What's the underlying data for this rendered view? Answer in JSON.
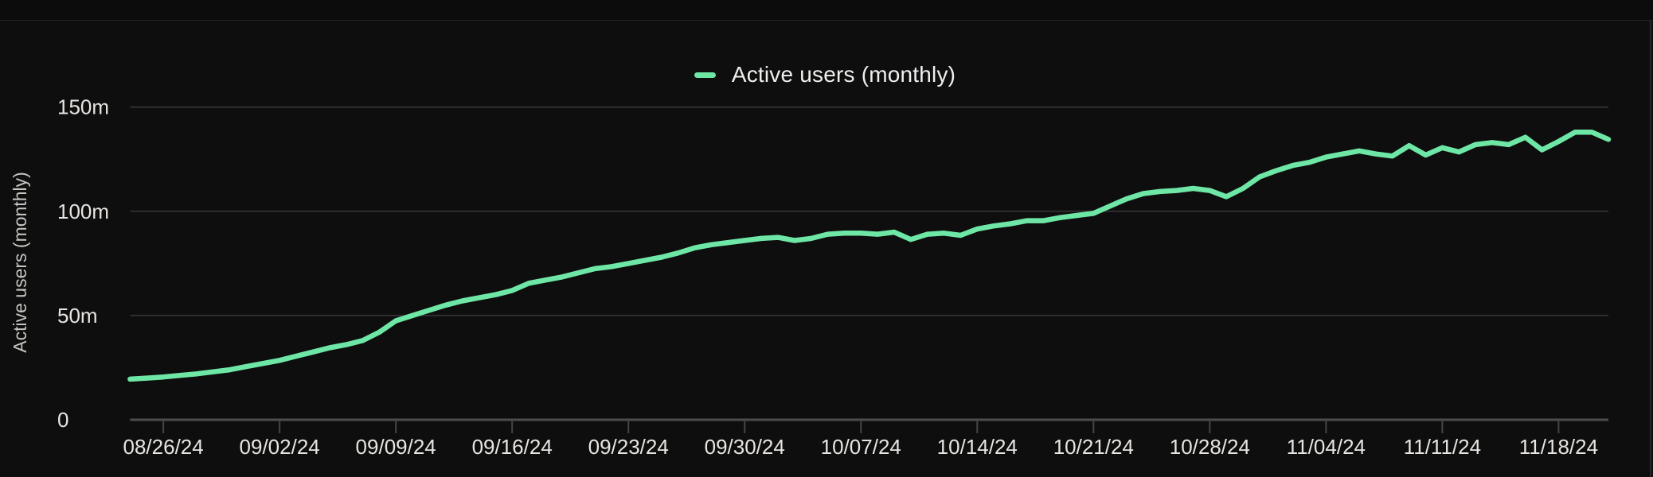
{
  "page": {
    "background": "#0e0e0e",
    "top_bar_background": "#0c0c0c",
    "divider_color": "#232323"
  },
  "chart_data": {
    "type": "line",
    "title": "",
    "legend": "Active users (monthly)",
    "ylabel": "Active users (monthly)",
    "xlabel": "",
    "ylim": [
      0,
      150
    ],
    "unit": "m (millions)",
    "grid": "horizontal",
    "legend_position": "top-center",
    "line_color": "#6ee7a6",
    "grid_color": "#2f2f2f",
    "axis_color": "#4d4d4d",
    "tick_mark_color": "#454545",
    "tick_text_color": "#e8e5e1",
    "axis_title_color": "#c9c6c2",
    "y_ticks": [
      {
        "value": 0,
        "label": "0"
      },
      {
        "value": 50,
        "label": "50m"
      },
      {
        "value": 100,
        "label": "100m"
      },
      {
        "value": 150,
        "label": "150m"
      }
    ],
    "x_tick_labels": [
      "08/26/24",
      "09/02/24",
      "09/09/24",
      "09/16/24",
      "09/23/24",
      "09/30/24",
      "10/07/24",
      "10/14/24",
      "10/21/24",
      "10/28/24",
      "11/04/24",
      "11/11/24",
      "11/18/24"
    ],
    "x": [
      "08/24/24",
      "08/25/24",
      "08/26/24",
      "08/27/24",
      "08/28/24",
      "08/29/24",
      "08/30/24",
      "08/31/24",
      "09/01/24",
      "09/02/24",
      "09/03/24",
      "09/04/24",
      "09/05/24",
      "09/06/24",
      "09/07/24",
      "09/08/24",
      "09/09/24",
      "09/10/24",
      "09/11/24",
      "09/12/24",
      "09/13/24",
      "09/14/24",
      "09/15/24",
      "09/16/24",
      "09/17/24",
      "09/18/24",
      "09/19/24",
      "09/20/24",
      "09/21/24",
      "09/22/24",
      "09/23/24",
      "09/24/24",
      "09/25/24",
      "09/26/24",
      "09/27/24",
      "09/28/24",
      "09/29/24",
      "09/30/24",
      "10/01/24",
      "10/02/24",
      "10/03/24",
      "10/04/24",
      "10/05/24",
      "10/06/24",
      "10/07/24",
      "10/08/24",
      "10/09/24",
      "10/10/24",
      "10/11/24",
      "10/12/24",
      "10/13/24",
      "10/14/24",
      "10/15/24",
      "10/16/24",
      "10/17/24",
      "10/18/24",
      "10/19/24",
      "10/20/24",
      "10/21/24",
      "10/22/24",
      "10/23/24",
      "10/24/24",
      "10/25/24",
      "10/26/24",
      "10/27/24",
      "10/28/24",
      "10/29/24",
      "10/30/24",
      "10/31/24",
      "11/01/24",
      "11/02/24",
      "11/03/24",
      "11/04/24",
      "11/05/24",
      "11/06/24",
      "11/07/24",
      "11/08/24",
      "11/09/24",
      "11/10/24",
      "11/11/24",
      "11/12/24",
      "11/13/24",
      "11/14/24",
      "11/15/24",
      "11/16/24",
      "11/17/24",
      "11/18/24",
      "11/19/24",
      "11/20/24",
      "11/21/24"
    ],
    "series": [
      {
        "name": "Active users (monthly)",
        "values": [
          19.5,
          20,
          20.5,
          21.3,
          22,
          23,
          24,
          25.5,
          27,
          28.5,
          30.5,
          32.5,
          34.5,
          36,
          38,
          42,
          47.5,
          50,
          52.5,
          55,
          57,
          58.5,
          60,
          62,
          65.5,
          67,
          68.5,
          70.5,
          72.5,
          73.5,
          75,
          76.5,
          78,
          80,
          82.5,
          84,
          85,
          86,
          87,
          87.5,
          86,
          87,
          89,
          89.5,
          89.5,
          89,
          90,
          86.5,
          89,
          89.5,
          88.5,
          91.5,
          93,
          94,
          95.5,
          95.5,
          97,
          98,
          99,
          102.5,
          106,
          108.5,
          109.5,
          110,
          111,
          110,
          107,
          111,
          116.5,
          119.5,
          122,
          123.5,
          126,
          127.5,
          129,
          127.5,
          126.5,
          131.5,
          127,
          130.5,
          128.5,
          132,
          133,
          132,
          135.5,
          129.5,
          133.5,
          138,
          138,
          134.5
        ]
      }
    ]
  }
}
